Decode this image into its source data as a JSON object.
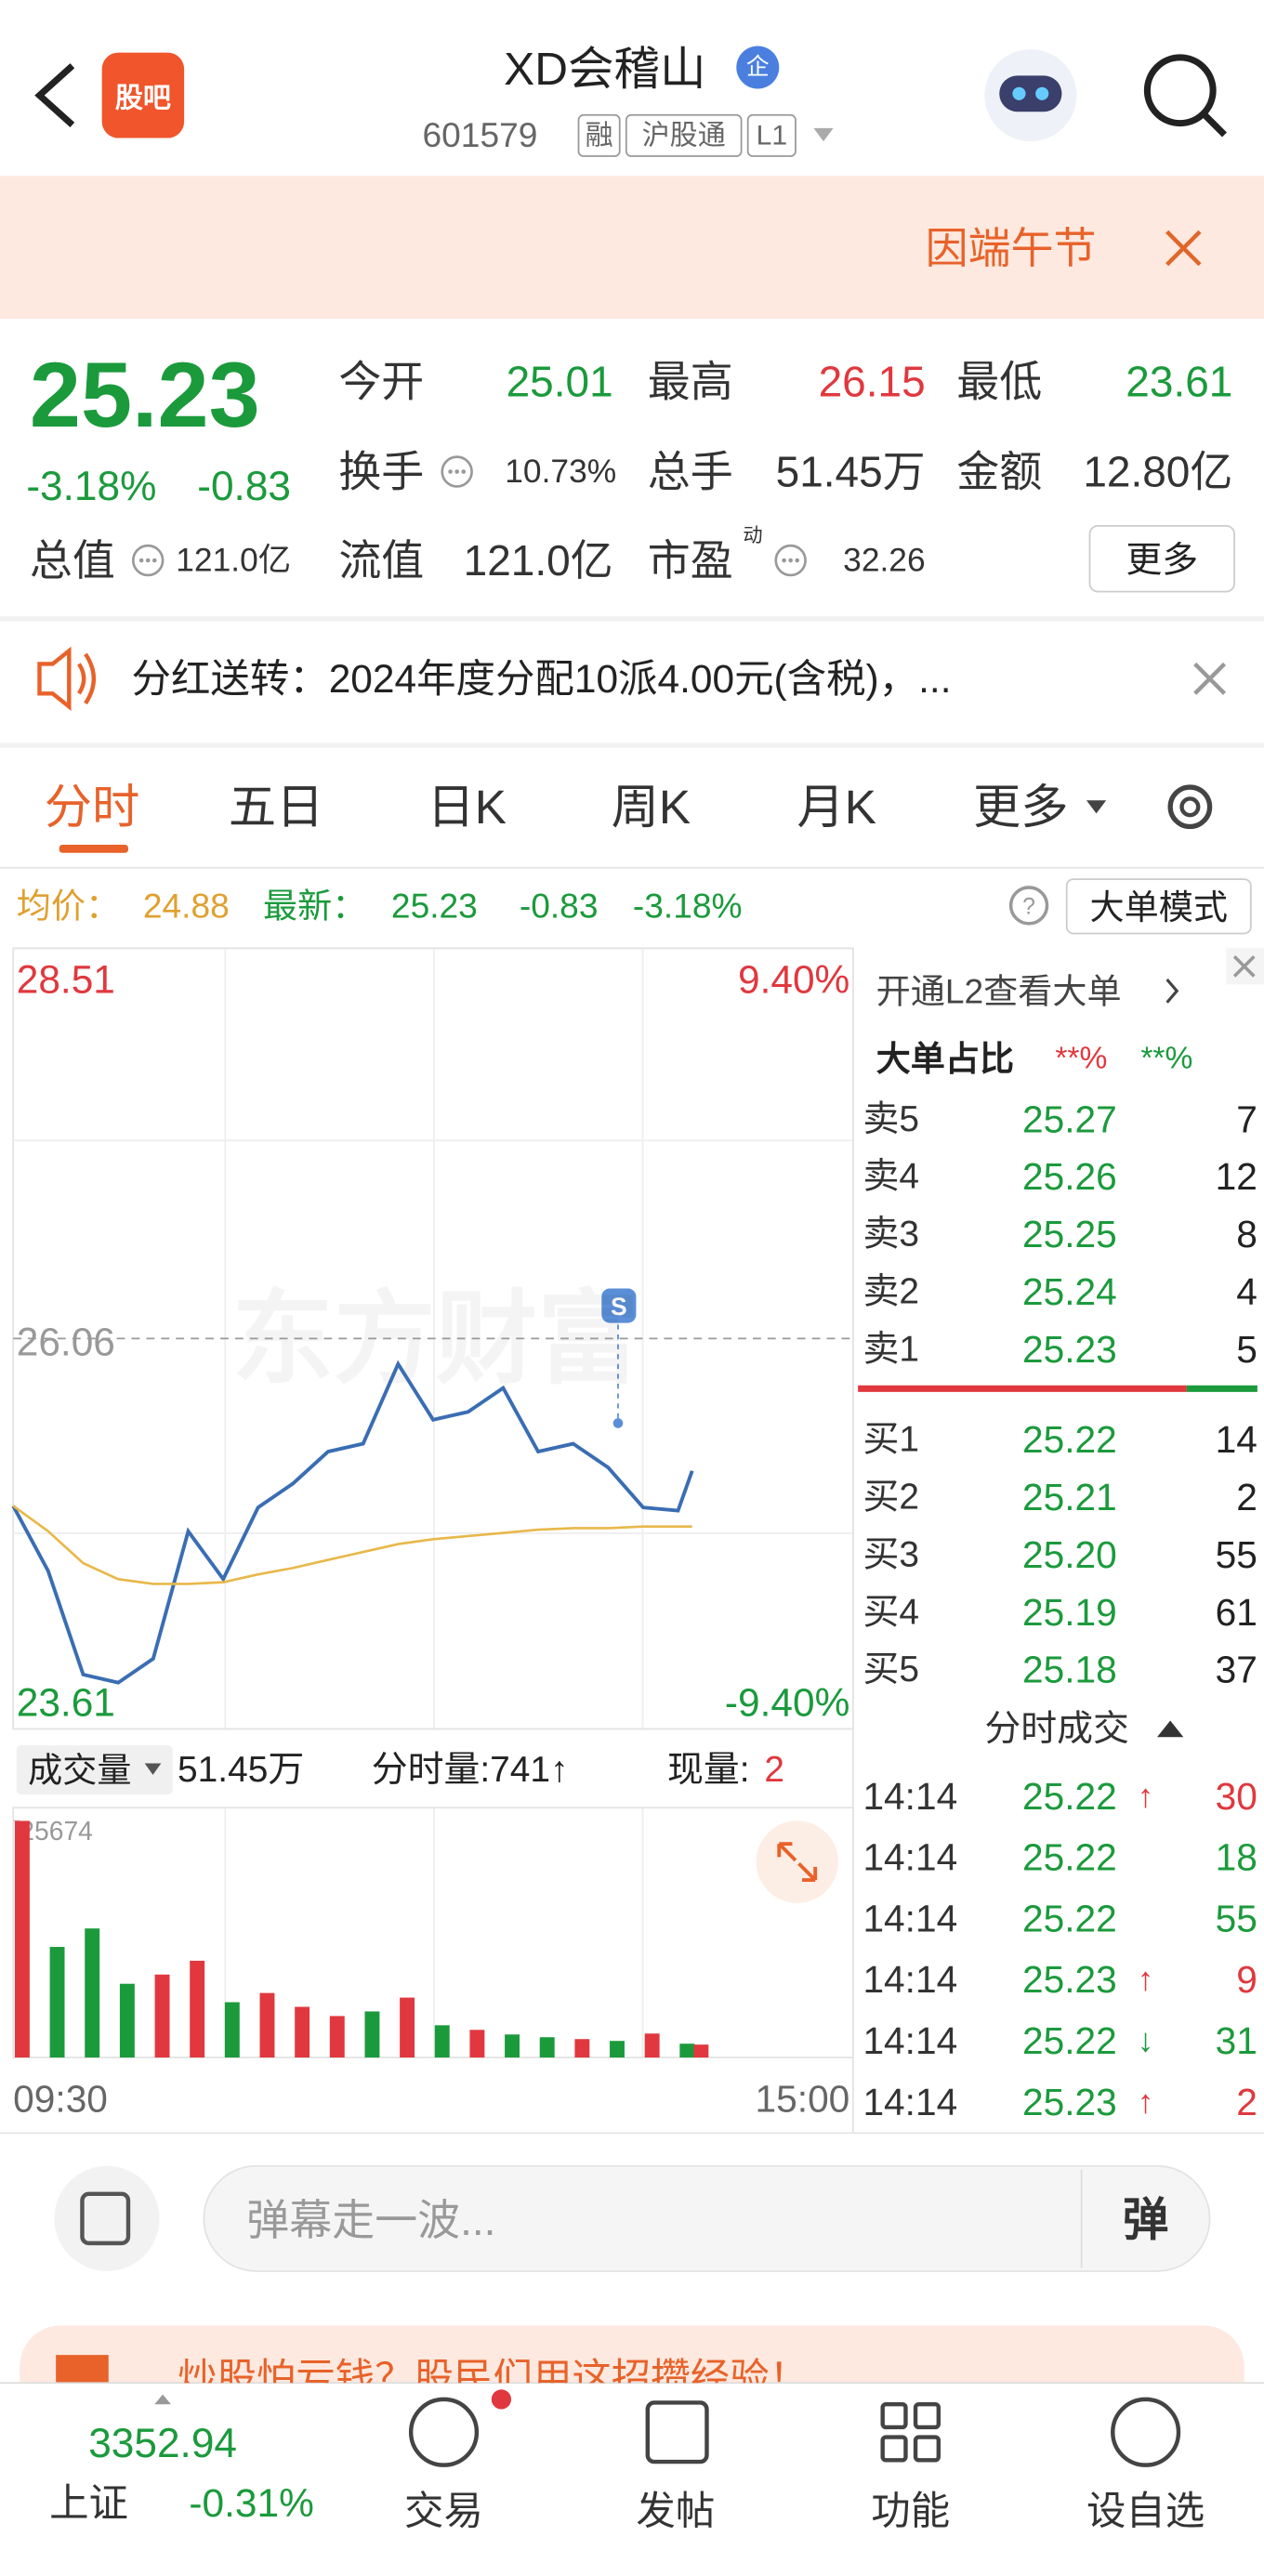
{
  "header": {
    "logo": "股吧",
    "title": "XD会稽山",
    "badge": "企",
    "code": "601579",
    "tags": [
      "融",
      "沪股通",
      "L1"
    ]
  },
  "notice": "因端午节",
  "quote": {
    "price": "25.23",
    "change_pct": "-3.18%",
    "change": "-0.83",
    "total_value": {
      "label": "总值",
      "value": "121.0亿"
    },
    "fields": [
      {
        "label": "今开",
        "value": "25.01"
      },
      {
        "label": "最高",
        "value": "26.15"
      },
      {
        "label": "最低",
        "value": "23.61"
      },
      {
        "label": "换手",
        "value": "10.73%"
      },
      {
        "label": "总手",
        "value": "51.45万"
      },
      {
        "label": "金额",
        "value": "12.80亿"
      },
      {
        "label": "流值",
        "value": "121.0亿"
      },
      {
        "label": "市盈",
        "sup": "动",
        "value": "32.26"
      }
    ],
    "more": "更多"
  },
  "dividend": "分红送转：2024年度分配10派4.00元(含税)，...",
  "tabs": [
    "分时",
    "五日",
    "日K",
    "周K",
    "月K",
    "更多"
  ],
  "info_bar": {
    "avg_label": "均价：",
    "avg": "24.88",
    "latest_label": "最新：",
    "latest": "25.23",
    "change": "-0.83",
    "change_pct": "-3.18%",
    "mode": "大单模式"
  },
  "watermark": "东方财富",
  "chart_data": [
    {
      "type": "line",
      "x": [
        "09:30",
        "09:40",
        "09:50",
        "10:00",
        "10:10",
        "10:20",
        "10:30",
        "10:40",
        "10:50",
        "11:00",
        "11:10",
        "11:20",
        "11:30",
        "13:10",
        "13:20",
        "13:30",
        "13:40",
        "13:50",
        "14:00",
        "14:10",
        "14:14"
      ],
      "series": [
        {
          "color": "#3a6db3",
          "values": [
            25.01,
            24.6,
            23.95,
            23.9,
            24.05,
            24.85,
            24.55,
            25.0,
            25.15,
            25.35,
            25.4,
            25.9,
            25.55,
            25.6,
            25.75,
            25.35,
            25.4,
            25.25,
            25.0,
            24.98,
            25.23
          ]
        },
        {
          "color": "#e8b84a",
          "values": [
            25.01,
            24.85,
            24.65,
            24.55,
            24.52,
            24.52,
            24.53,
            24.58,
            24.62,
            24.67,
            24.72,
            24.77,
            24.8,
            24.82,
            24.84,
            24.86,
            24.87,
            24.87,
            24.88,
            24.88,
            24.88
          ]
        }
      ],
      "ylim": [
        23.61,
        28.51
      ],
      "yticks": [
        23.61,
        26.06,
        28.51
      ],
      "y2lim": [
        -9.4,
        9.4
      ],
      "y2ticks": [
        {
          "value": -9.4,
          "label": "-9.40%"
        },
        {
          "value": 9.4,
          "label": "9.40%"
        }
      ],
      "xticks": [
        "09:30",
        "15:00"
      ]
    },
    {
      "type": "bar",
      "label": "成交量",
      "total": "51.45万",
      "tick_volume": "分时量:741↑",
      "current_label": "现量:",
      "current": "2",
      "x": [
        "09:30",
        "09:40",
        "09:50",
        "10:00",
        "10:10",
        "10:20",
        "10:30",
        "10:40",
        "10:50",
        "11:00",
        "11:10",
        "11:20",
        "11:30",
        "13:10",
        "13:20",
        "13:30",
        "13:40",
        "13:50",
        "14:00",
        "14:10",
        "14:14"
      ],
      "values": [
        25674,
        12000,
        14000,
        8000,
        9000,
        10500,
        6000,
        7000,
        5500,
        4500,
        5000,
        6500,
        3500,
        3000,
        2500,
        2200,
        2000,
        1800,
        2600,
        1500,
        1400
      ],
      "colors": [
        "#e0383e",
        "#1b9a3c",
        "#1b9a3c",
        "#1b9a3c",
        "#e0383e",
        "#e0383e",
        "#1b9a3c",
        "#e0383e",
        "#e0383e",
        "#e0383e",
        "#1b9a3c",
        "#e0383e",
        "#1b9a3c",
        "#e0383e",
        "#1b9a3c",
        "#1b9a3c",
        "#e0383e",
        "#1b9a3c",
        "#e0383e",
        "#1b9a3c",
        "#e0383e"
      ],
      "ylim": [
        0,
        25674
      ],
      "yticks": [
        25674
      ]
    }
  ],
  "order_book": {
    "l2_link": "开通L2查看大单",
    "ratio_label": "大单占比",
    "ratio_values": [
      "**%",
      "**%"
    ],
    "asks": [
      {
        "label": "卖5",
        "price": "25.27",
        "volume": "7"
      },
      {
        "label": "卖4",
        "price": "25.26",
        "volume": "12"
      },
      {
        "label": "卖3",
        "price": "25.25",
        "volume": "8"
      },
      {
        "label": "卖2",
        "price": "25.24",
        "volume": "4"
      },
      {
        "label": "卖1",
        "price": "25.23",
        "volume": "5"
      }
    ],
    "bids": [
      {
        "label": "买1",
        "price": "25.22",
        "volume": "14"
      },
      {
        "label": "买2",
        "price": "25.21",
        "volume": "2"
      },
      {
        "label": "买3",
        "price": "25.20",
        "volume": "55"
      },
      {
        "label": "买4",
        "price": "25.19",
        "volume": "61"
      },
      {
        "label": "买5",
        "price": "25.18",
        "volume": "37"
      }
    ],
    "trades_title": "分时成交",
    "trades": [
      {
        "time": "14:14",
        "price": "25.22",
        "dir": "↑",
        "volume": "30"
      },
      {
        "time": "14:14",
        "price": "25.22",
        "volume": "18"
      },
      {
        "time": "14:14",
        "price": "25.22",
        "volume": "55"
      },
      {
        "time": "14:14",
        "price": "25.23",
        "dir": "↑",
        "volume": "9"
      },
      {
        "time": "14:14",
        "price": "25.22",
        "dir": "↓",
        "volume": "31"
      },
      {
        "time": "14:14",
        "price": "25.23",
        "dir": "↑",
        "volume": "2"
      }
    ]
  },
  "comment": {
    "placeholder": "弹幕走一波...",
    "button": "弹"
  },
  "banner": "炒股怕亏钱？股民们用这招攒经验！",
  "bottom_nav": {
    "index": {
      "value": "3352.94",
      "name": "上证",
      "change_pct": "-0.31%"
    },
    "items": [
      "交易",
      "发帖",
      "功能",
      "设自选"
    ]
  }
}
